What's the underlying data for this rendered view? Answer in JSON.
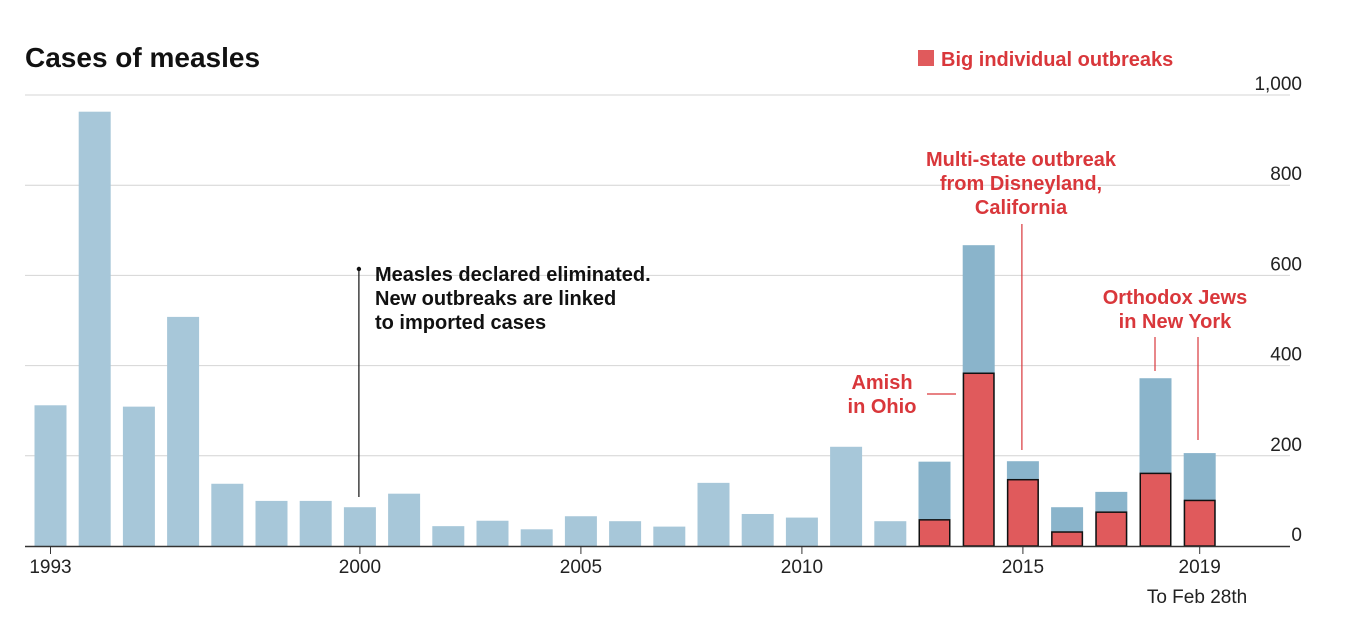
{
  "chart_data": {
    "type": "bar",
    "title": "Cases of measles",
    "legend": {
      "label": "Big individual outbreaks",
      "position": "top-right"
    },
    "colors": {
      "bar_early": "#a7c7d9",
      "bar_recent": "#8ab4cb",
      "outbreak": "#e05a5c",
      "annotation_red": "#d9373b",
      "gridline": "#d4d4d4",
      "axis": "#333333"
    },
    "categories": [
      1993,
      1994,
      1995,
      1996,
      1997,
      1998,
      1999,
      2000,
      2001,
      2002,
      2003,
      2004,
      2005,
      2006,
      2007,
      2008,
      2009,
      2010,
      2011,
      2012,
      2013,
      2014,
      2015,
      2016,
      2017,
      2018,
      2019
    ],
    "series": [
      {
        "values": [
          312,
          963,
          309,
          508,
          138,
          100,
          100,
          86,
          116,
          44,
          56,
          37,
          66,
          55,
          43,
          140,
          71,
          63,
          220,
          55,
          187,
          667,
          188,
          86,
          120,
          372,
          206
        ]
      },
      {
        "name": "Big individual outbreaks",
        "values": [
          null,
          null,
          null,
          null,
          null,
          null,
          null,
          null,
          null,
          null,
          null,
          null,
          null,
          null,
          null,
          null,
          null,
          null,
          null,
          null,
          58,
          383,
          147,
          31,
          75,
          161,
          101
        ]
      }
    ],
    "ylim": [
      0,
      1000
    ],
    "yticks": [
      "0",
      "200",
      "400",
      "600",
      "800",
      "1,000"
    ],
    "xticks": [
      "1993",
      "2000",
      "2005",
      "2010",
      "2015",
      "2019"
    ],
    "x_note": "To Feb 28th",
    "grid": true,
    "y_axis_side": "right",
    "annotations": [
      {
        "lines": [
          "Measles declared eliminated.",
          "New outbreaks are linked",
          "to imported cases"
        ],
        "year": 2000,
        "color": "black"
      },
      {
        "lines": [
          "Amish",
          "in Ohio"
        ],
        "year": 2014,
        "color": "red"
      },
      {
        "lines": [
          "Multi-state outbreak",
          "from Disneyland,",
          "California"
        ],
        "year": 2015,
        "color": "red"
      },
      {
        "lines": [
          "Orthodox Jews",
          "in New York"
        ],
        "year": 2018,
        "color": "red"
      }
    ]
  }
}
